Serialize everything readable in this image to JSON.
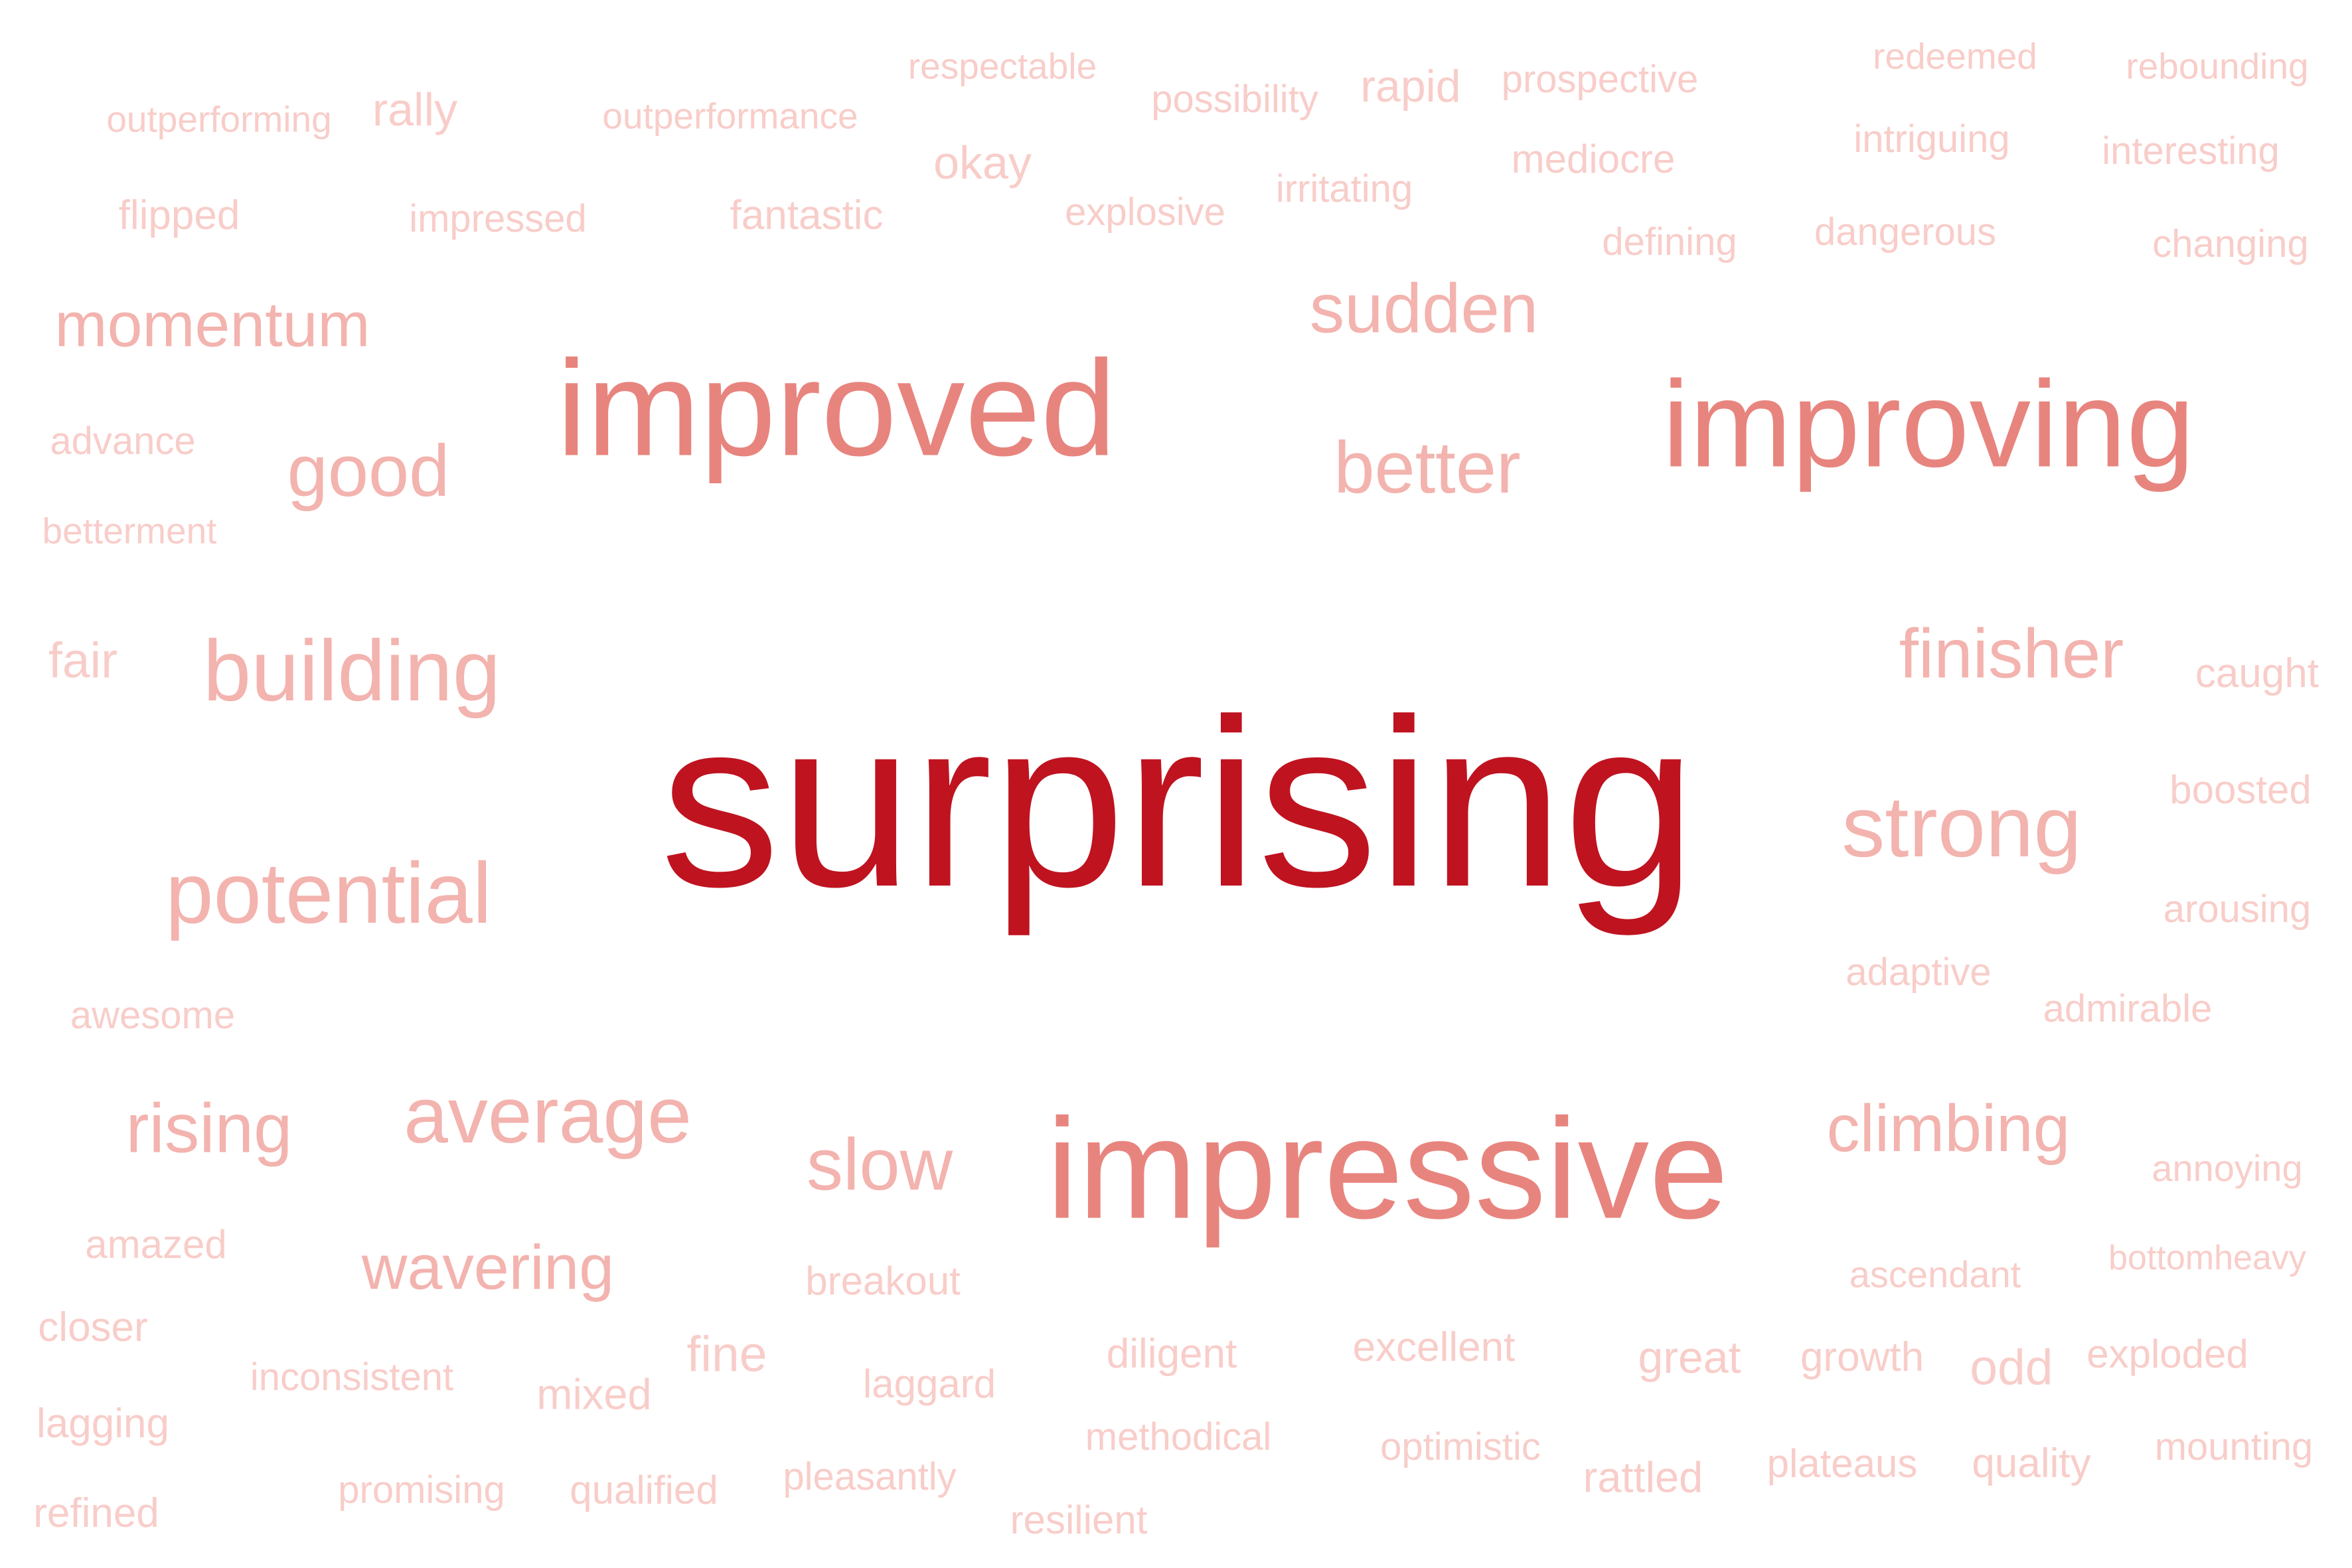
{
  "palette": {
    "background": "#ffffff",
    "dark": "#bf1320",
    "medium": "#e8847e",
    "light": "#f3b3ae",
    "faint": "#f8cdc9"
  },
  "words": [
    {
      "text": "surprising",
      "tone": "dark"
    },
    {
      "text": "improved",
      "tone": "medium"
    },
    {
      "text": "improving",
      "tone": "medium"
    },
    {
      "text": "impressive",
      "tone": "medium"
    },
    {
      "text": "building",
      "tone": "light"
    },
    {
      "text": "potential",
      "tone": "light"
    },
    {
      "text": "strong",
      "tone": "light"
    },
    {
      "text": "average",
      "tone": "light"
    },
    {
      "text": "finisher",
      "tone": "light"
    },
    {
      "text": "climbing",
      "tone": "light"
    },
    {
      "text": "sudden",
      "tone": "light"
    },
    {
      "text": "better",
      "tone": "light"
    },
    {
      "text": "good",
      "tone": "light"
    },
    {
      "text": "momentum",
      "tone": "light"
    },
    {
      "text": "rising",
      "tone": "light"
    },
    {
      "text": "slow",
      "tone": "light"
    },
    {
      "text": "wavering",
      "tone": "light"
    },
    {
      "text": "respectable",
      "tone": "faint"
    },
    {
      "text": "redeemed",
      "tone": "faint"
    },
    {
      "text": "rebounding",
      "tone": "faint"
    },
    {
      "text": "possibility",
      "tone": "faint"
    },
    {
      "text": "rapid",
      "tone": "faint"
    },
    {
      "text": "prospective",
      "tone": "faint"
    },
    {
      "text": "outperforming",
      "tone": "faint"
    },
    {
      "text": "rally",
      "tone": "faint"
    },
    {
      "text": "outperformance",
      "tone": "faint"
    },
    {
      "text": "intriguing",
      "tone": "faint"
    },
    {
      "text": "interesting",
      "tone": "faint"
    },
    {
      "text": "okay",
      "tone": "faint"
    },
    {
      "text": "mediocre",
      "tone": "faint"
    },
    {
      "text": "irritating",
      "tone": "faint"
    },
    {
      "text": "flipped",
      "tone": "faint"
    },
    {
      "text": "impressed",
      "tone": "faint"
    },
    {
      "text": "fantastic",
      "tone": "faint"
    },
    {
      "text": "explosive",
      "tone": "faint"
    },
    {
      "text": "dangerous",
      "tone": "faint"
    },
    {
      "text": "defining",
      "tone": "faint"
    },
    {
      "text": "changing",
      "tone": "faint"
    },
    {
      "text": "advance",
      "tone": "faint"
    },
    {
      "text": "betterment",
      "tone": "faint"
    },
    {
      "text": "fair",
      "tone": "faint"
    },
    {
      "text": "caught",
      "tone": "faint"
    },
    {
      "text": "boosted",
      "tone": "faint"
    },
    {
      "text": "arousing",
      "tone": "faint"
    },
    {
      "text": "adaptive",
      "tone": "faint"
    },
    {
      "text": "admirable",
      "tone": "faint"
    },
    {
      "text": "awesome",
      "tone": "faint"
    },
    {
      "text": "annoying",
      "tone": "faint"
    },
    {
      "text": "amazed",
      "tone": "faint"
    },
    {
      "text": "breakout",
      "tone": "faint"
    },
    {
      "text": "ascendant",
      "tone": "faint"
    },
    {
      "text": "bottomheavy",
      "tone": "faint"
    },
    {
      "text": "closer",
      "tone": "faint"
    },
    {
      "text": "fine",
      "tone": "faint"
    },
    {
      "text": "diligent",
      "tone": "faint"
    },
    {
      "text": "excellent",
      "tone": "faint"
    },
    {
      "text": "great",
      "tone": "faint"
    },
    {
      "text": "growth",
      "tone": "faint"
    },
    {
      "text": "odd",
      "tone": "faint"
    },
    {
      "text": "exploded",
      "tone": "faint"
    },
    {
      "text": "inconsistent",
      "tone": "faint"
    },
    {
      "text": "mixed",
      "tone": "faint"
    },
    {
      "text": "laggard",
      "tone": "faint"
    },
    {
      "text": "lagging",
      "tone": "faint"
    },
    {
      "text": "methodical",
      "tone": "faint"
    },
    {
      "text": "optimistic",
      "tone": "faint"
    },
    {
      "text": "rattled",
      "tone": "faint"
    },
    {
      "text": "plateaus",
      "tone": "faint"
    },
    {
      "text": "quality",
      "tone": "faint"
    },
    {
      "text": "mounting",
      "tone": "faint"
    },
    {
      "text": "promising",
      "tone": "faint"
    },
    {
      "text": "qualified",
      "tone": "faint"
    },
    {
      "text": "pleasantly",
      "tone": "faint"
    },
    {
      "text": "refined",
      "tone": "faint"
    },
    {
      "text": "resilient",
      "tone": "faint"
    }
  ]
}
